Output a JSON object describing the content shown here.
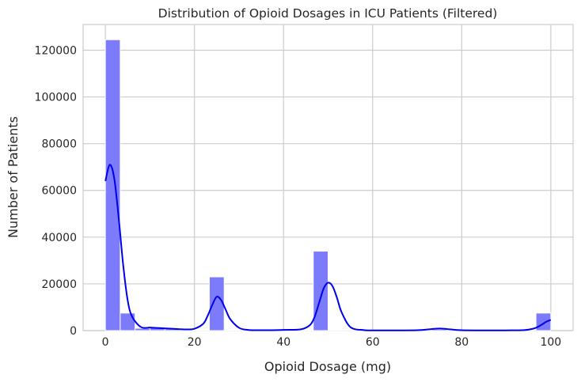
{
  "chart_data": {
    "type": "bar",
    "subtype": "histogram_with_kde",
    "title": "Distribution of Opioid Dosages in ICU Patients (Filtered)",
    "xlabel": "Opioid Dosage (mg)",
    "ylabel": "Number of Patients",
    "xlim": [
      -5,
      105
    ],
    "ylim": [
      0,
      131000
    ],
    "x_ticks": [
      0,
      20,
      40,
      60,
      80,
      100
    ],
    "y_ticks": [
      0,
      20000,
      40000,
      60000,
      80000,
      100000,
      120000
    ],
    "grid": true,
    "bar_color": "#7b7bfb",
    "bar_edge_color": "#ffffff",
    "kde_color": "#0000ee",
    "bins": [
      {
        "x0": 0.0,
        "x1": 3.33,
        "count": 124500
      },
      {
        "x0": 3.33,
        "x1": 6.67,
        "count": 7500
      },
      {
        "x0": 6.67,
        "x1": 10.0,
        "count": 1000
      },
      {
        "x0": 10.0,
        "x1": 13.33,
        "count": 1200
      },
      {
        "x0": 13.33,
        "x1": 16.67,
        "count": 700
      },
      {
        "x0": 16.67,
        "x1": 20.0,
        "count": 300
      },
      {
        "x0": 20.0,
        "x1": 23.33,
        "count": 200
      },
      {
        "x0": 23.33,
        "x1": 26.67,
        "count": 23000
      },
      {
        "x0": 26.67,
        "x1": 30.0,
        "count": 300
      },
      {
        "x0": 30.0,
        "x1": 33.33,
        "count": 150
      },
      {
        "x0": 33.33,
        "x1": 36.67,
        "count": 150
      },
      {
        "x0": 36.67,
        "x1": 40.0,
        "count": 300
      },
      {
        "x0": 40.0,
        "x1": 43.33,
        "count": 300
      },
      {
        "x0": 43.33,
        "x1": 46.67,
        "count": 300
      },
      {
        "x0": 46.67,
        "x1": 50.0,
        "count": 34000
      },
      {
        "x0": 50.0,
        "x1": 53.33,
        "count": 150
      },
      {
        "x0": 53.33,
        "x1": 56.67,
        "count": 100
      },
      {
        "x0": 56.67,
        "x1": 60.0,
        "count": 100
      },
      {
        "x0": 60.0,
        "x1": 63.33,
        "count": 100
      },
      {
        "x0": 63.33,
        "x1": 66.67,
        "count": 100
      },
      {
        "x0": 66.67,
        "x1": 70.0,
        "count": 100
      },
      {
        "x0": 70.0,
        "x1": 73.33,
        "count": 100
      },
      {
        "x0": 73.33,
        "x1": 76.67,
        "count": 600
      },
      {
        "x0": 76.67,
        "x1": 80.0,
        "count": 100
      },
      {
        "x0": 80.0,
        "x1": 83.33,
        "count": 100
      },
      {
        "x0": 83.33,
        "x1": 86.67,
        "count": 100
      },
      {
        "x0": 86.67,
        "x1": 90.0,
        "count": 100
      },
      {
        "x0": 90.0,
        "x1": 93.33,
        "count": 100
      },
      {
        "x0": 93.33,
        "x1": 96.67,
        "count": 100
      },
      {
        "x0": 96.67,
        "x1": 100.0,
        "count": 7500
      }
    ],
    "kde_curve": {
      "x": [
        0,
        1,
        2,
        3,
        4,
        5,
        6,
        8,
        10,
        12,
        15,
        18,
        20,
        22,
        23,
        24,
        25,
        26,
        27,
        28,
        30,
        32,
        35,
        40,
        44,
        46,
        47,
        48,
        49,
        50,
        51,
        52,
        53,
        55,
        58,
        60,
        65,
        70,
        73,
        75,
        77,
        80,
        85,
        90,
        94,
        96,
        97,
        98,
        99,
        100
      ],
      "y": [
        64000,
        71000,
        65000,
        48000,
        28000,
        13000,
        6000,
        1500,
        1300,
        1100,
        800,
        500,
        800,
        3000,
        6500,
        11000,
        14500,
        13000,
        9000,
        5000,
        1200,
        300,
        150,
        300,
        600,
        2500,
        6000,
        12000,
        18000,
        20500,
        19000,
        14000,
        8000,
        1500,
        200,
        100,
        100,
        150,
        600,
        900,
        600,
        150,
        100,
        100,
        200,
        800,
        1500,
        2600,
        3800,
        4600
      ]
    }
  }
}
